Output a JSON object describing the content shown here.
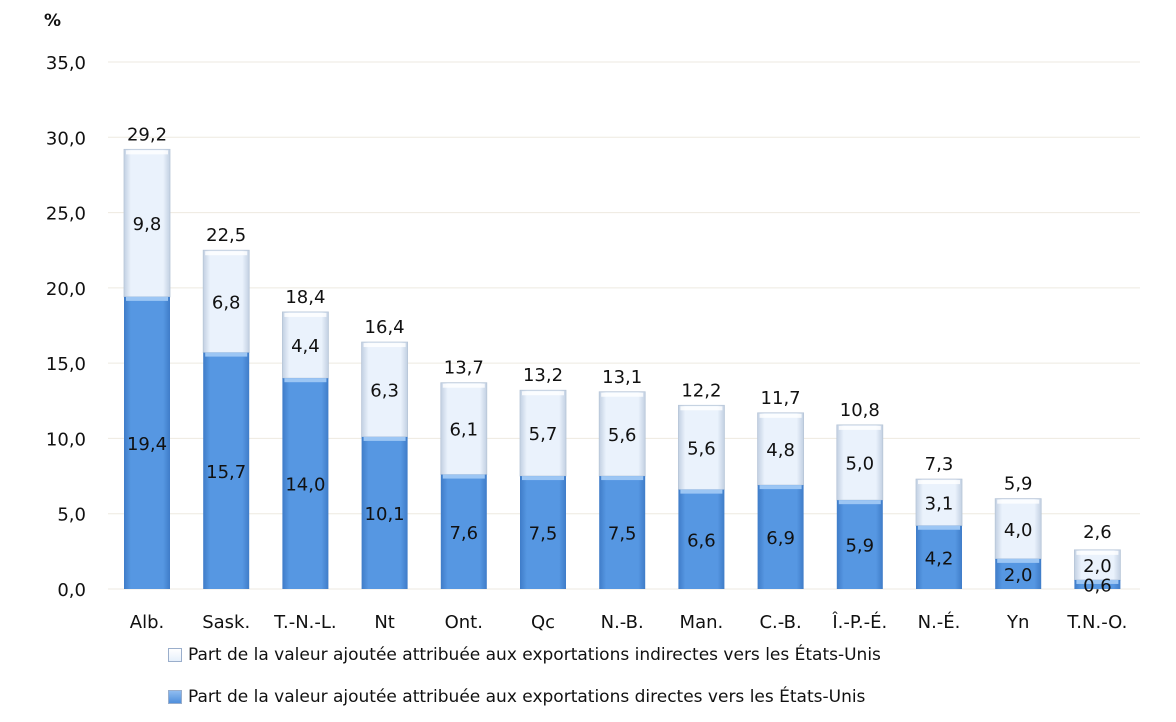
{
  "chart_data": {
    "type": "bar",
    "stacked": true,
    "ylabel": "%",
    "ylim": [
      0,
      35
    ],
    "yticks": [
      "0,0",
      "5,0",
      "10,0",
      "15,0",
      "20,0",
      "25,0",
      "30,0",
      "35,0"
    ],
    "grid": true,
    "legend_position": "bottom",
    "categories": [
      "Alb.",
      "Sask.",
      "T.-N.-L.",
      "Nt",
      "Ont.",
      "Qc",
      "N.-B.",
      "Man.",
      "C.-B.",
      "Î.-P.-É.",
      "N.-É.",
      "Yn",
      "T.N.-O."
    ],
    "series": [
      {
        "name": "Part de la valeur ajoutée attribuée aux exportations directes vers les États-Unis",
        "color": "#4f8fdc",
        "values": [
          19.4,
          15.7,
          14.0,
          10.1,
          7.6,
          7.5,
          7.5,
          6.6,
          6.9,
          5.9,
          4.2,
          2.0,
          0.6
        ],
        "labels": [
          "19,4",
          "15,7",
          "14,0",
          "10,1",
          "7,6",
          "7,5",
          "7,5",
          "6,6",
          "6,9",
          "5,9",
          "4,2",
          "2,0",
          "0,6"
        ]
      },
      {
        "name": "Part de la valeur ajoutée attribuée aux exportations indirectes vers les États-Unis",
        "color": "#e6f0fb",
        "values": [
          9.8,
          6.8,
          4.4,
          6.3,
          6.1,
          5.7,
          5.6,
          5.6,
          4.8,
          5.0,
          3.1,
          4.0,
          2.0
        ],
        "labels": [
          "9,8",
          "6,8",
          "4,4",
          "6,3",
          "6,1",
          "5,7",
          "5,6",
          "5,6",
          "4,8",
          "5,0",
          "3,1",
          "4,0",
          "2,0"
        ]
      }
    ],
    "totals": [
      29.2,
      22.5,
      18.4,
      16.4,
      13.7,
      13.2,
      13.1,
      12.2,
      11.7,
      10.8,
      7.3,
      5.9,
      2.6
    ],
    "total_labels": [
      "29,2",
      "22,5",
      "18,4",
      "16,4",
      "13,7",
      "13,2",
      "13,1",
      "12,2",
      "11,7",
      "10,8",
      "7,3",
      "5,9",
      "2,6"
    ]
  }
}
